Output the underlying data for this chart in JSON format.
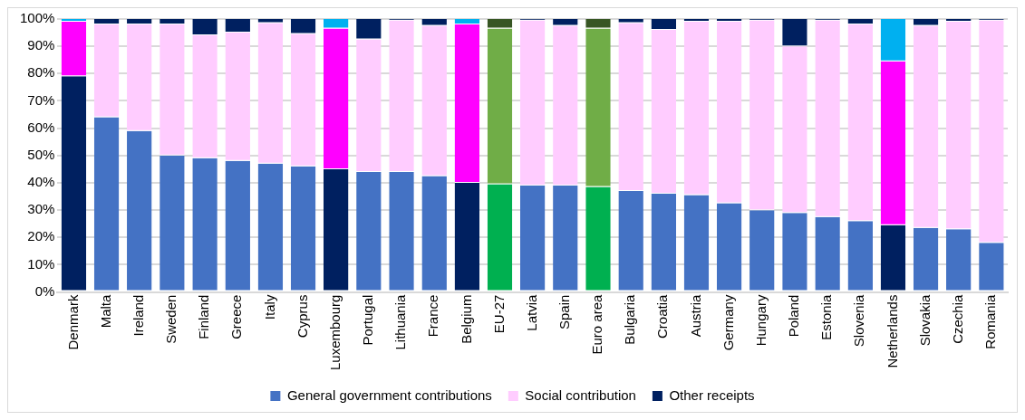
{
  "chart_data": {
    "type": "bar",
    "stacked": true,
    "categories": [
      "Denmark",
      "Malta",
      "Ireland",
      "Sweden",
      "Finland",
      "Greece",
      "Italy",
      "Cyprus",
      "Luxembourg",
      "Portugal",
      "Lithuania",
      "France",
      "Belgium",
      "EU-27",
      "Latvia",
      "Spain",
      "Euro area",
      "Bulgaria",
      "Croatia",
      "Austria",
      "Germany",
      "Hungary",
      "Poland",
      "Estonia",
      "Slovenia",
      "Netherlands",
      "Slovakia",
      "Czechia",
      "Romania"
    ],
    "series": [
      {
        "name": "General government contributions",
        "color": "#4472c4",
        "colors": [
          "#002060",
          "#4472c4",
          "#4472c4",
          "#4472c4",
          "#4472c4",
          "#4472c4",
          "#4472c4",
          "#4472c4",
          "#002060",
          "#4472c4",
          "#4472c4",
          "#4472c4",
          "#002060",
          "#00b050",
          "#4472c4",
          "#4472c4",
          "#00b050",
          "#4472c4",
          "#4472c4",
          "#4472c4",
          "#4472c4",
          "#4472c4",
          "#4472c4",
          "#4472c4",
          "#4472c4",
          "#002060",
          "#4472c4",
          "#4472c4",
          "#4472c4"
        ],
        "values": [
          79,
          64,
          59,
          50,
          49,
          48,
          47,
          46,
          45,
          44,
          44,
          42.5,
          40,
          39.5,
          39,
          39,
          38.5,
          37,
          36,
          35.5,
          32.5,
          30,
          29,
          27.5,
          26,
          24.5,
          23.5,
          23,
          18
        ]
      },
      {
        "name": "Social contribution",
        "color": "#ffccff",
        "colors": [
          "#ff00ff",
          "#ffccff",
          "#ffccff",
          "#ffccff",
          "#ffccff",
          "#ffccff",
          "#ffccff",
          "#ffccff",
          "#ff00ff",
          "#ffccff",
          "#ffccff",
          "#ffccff",
          "#ff00ff",
          "#70ad47",
          "#ffccff",
          "#ffccff",
          "#70ad47",
          "#ffccff",
          "#ffccff",
          "#ffccff",
          "#ffccff",
          "#ffccff",
          "#ffccff",
          "#ffccff",
          "#ffccff",
          "#ff00ff",
          "#ffccff",
          "#ffccff",
          "#ffccff"
        ],
        "values": [
          20,
          34,
          39,
          48,
          45,
          47,
          51.5,
          48.5,
          51.5,
          48.5,
          55.5,
          55,
          58,
          57,
          60.5,
          58.5,
          58,
          61.5,
          60,
          63.5,
          66.5,
          69.5,
          61,
          72,
          72,
          60,
          74,
          76,
          81.5
        ]
      },
      {
        "name": "Other receipts",
        "color": "#002060",
        "colors": [
          "#00b0f0",
          "#002060",
          "#002060",
          "#002060",
          "#002060",
          "#002060",
          "#002060",
          "#002060",
          "#00b0f0",
          "#002060",
          "#002060",
          "#002060",
          "#00b0f0",
          "#375623",
          "#002060",
          "#002060",
          "#375623",
          "#002060",
          "#002060",
          "#002060",
          "#002060",
          "#002060",
          "#002060",
          "#002060",
          "#002060",
          "#00b0f0",
          "#002060",
          "#002060",
          "#002060"
        ],
        "values": [
          1,
          2,
          2,
          2,
          6,
          5,
          1.5,
          5.5,
          3.5,
          7.5,
          0.5,
          2.5,
          2,
          3.5,
          0.5,
          2.5,
          3.5,
          1.5,
          4,
          1,
          1,
          0.5,
          10,
          0.5,
          2,
          15.5,
          2.5,
          1,
          0.5
        ]
      }
    ],
    "ylim": [
      0,
      100
    ],
    "yticks": [
      {
        "value": 0,
        "label": "0%"
      },
      {
        "value": 10,
        "label": "10%"
      },
      {
        "value": 20,
        "label": "20%"
      },
      {
        "value": 30,
        "label": "30%"
      },
      {
        "value": 40,
        "label": "40%"
      },
      {
        "value": 50,
        "label": "50%"
      },
      {
        "value": 60,
        "label": "60%"
      },
      {
        "value": 70,
        "label": "70%"
      },
      {
        "value": 80,
        "label": "80%"
      },
      {
        "value": 90,
        "label": "90%"
      },
      {
        "value": 100,
        "label": "100%"
      }
    ],
    "grid": "y",
    "legend": "bottom"
  }
}
